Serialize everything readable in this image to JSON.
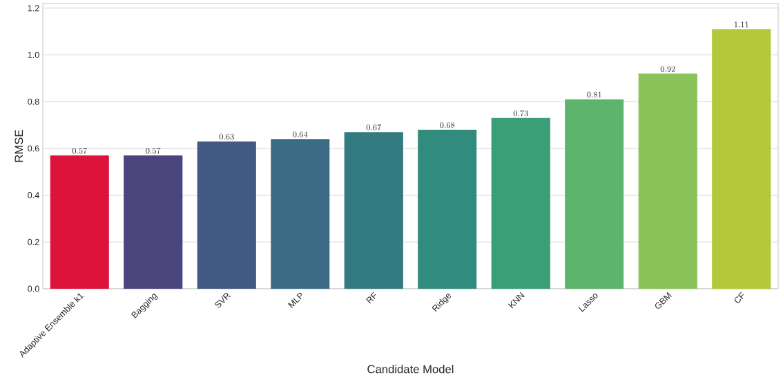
{
  "chart_data": {
    "type": "bar",
    "xlabel": "Candidate Model",
    "ylabel": "RMSE",
    "categories": [
      "Adaptive Ensemble k1",
      "Bagging",
      "SVR",
      "MLP",
      "RF",
      "Ridge",
      "KNN",
      "Lasso",
      "GBM",
      "CF"
    ],
    "values": [
      0.57,
      0.57,
      0.63,
      0.64,
      0.67,
      0.68,
      0.73,
      0.81,
      0.92,
      1.11
    ],
    "colors": [
      "#dc143c",
      "#4a457c",
      "#435a82",
      "#3b6b85",
      "#337b80",
      "#318c7d",
      "#3a9e77",
      "#5db46d",
      "#8bc35a",
      "#b3c93a"
    ],
    "ylim": [
      0,
      1.22
    ],
    "yticks": [
      {
        "value": 0,
        "label": "0.0"
      },
      {
        "value": 0.2,
        "label": "0.2"
      },
      {
        "value": 0.4,
        "label": "0.4"
      },
      {
        "value": 0.6,
        "label": "0.6"
      },
      {
        "value": 0.8,
        "label": "0.8"
      },
      {
        "value": 1.0,
        "label": "1.0"
      },
      {
        "value": 1.2,
        "label": "1.2"
      }
    ],
    "grid": "y",
    "data_labels": true
  }
}
